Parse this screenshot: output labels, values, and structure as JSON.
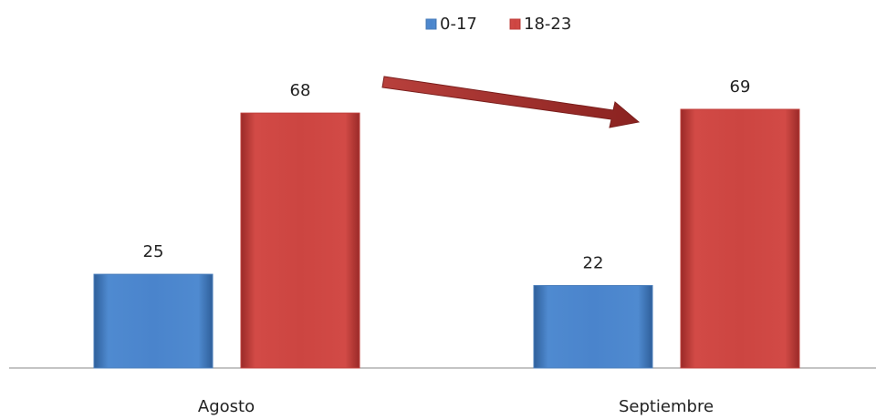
{
  "chart_data": {
    "type": "bar",
    "categories": [
      "Agosto",
      "Septiembre"
    ],
    "series": [
      {
        "name": "0-17",
        "color": "#4a7ebb",
        "values": [
          25,
          22
        ]
      },
      {
        "name": "18-23",
        "color": "#c0403d",
        "values": [
          68,
          69
        ]
      }
    ],
    "legend": "top"
  }
}
